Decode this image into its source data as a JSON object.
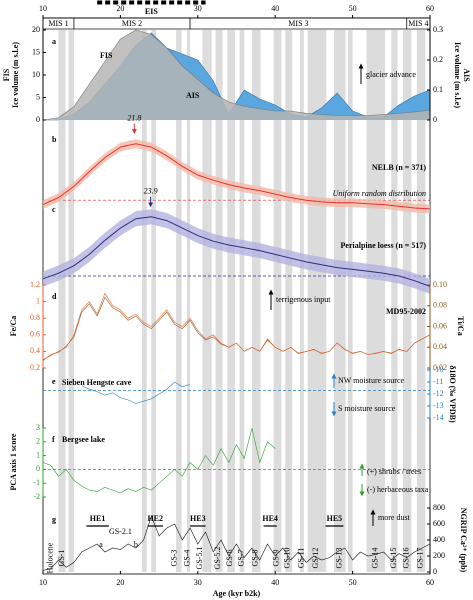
{
  "chart_data": [
    {
      "type": "area",
      "label": "a",
      "xlim": [
        10,
        60
      ],
      "xticks": [
        10,
        20,
        30,
        40,
        50,
        60
      ],
      "ylim": [
        0,
        20
      ],
      "yticks": [
        0,
        5,
        10,
        15,
        20
      ],
      "y2lim": [
        0,
        0.3
      ],
      "y2ticks": [
        0,
        0.1,
        0.2,
        0.3
      ],
      "ylabel": "Ice volume (m s.l.e)",
      "y2label": "Ice volume (m s.l.e)",
      "periods": [
        {
          "name": "MIS 1",
          "range": [
            10,
            14
          ]
        },
        {
          "name": "MIS 2",
          "range": [
            14,
            29
          ]
        },
        {
          "name": "MIS 3",
          "range": [
            29,
            57
          ]
        },
        {
          "name": "MIS 4",
          "range": [
            57,
            60
          ]
        }
      ],
      "eis": {
        "name": "EIS",
        "range": [
          17,
          31
        ]
      },
      "stadials": [
        [
          12.0,
          12.9
        ],
        [
          13.3,
          14.0
        ],
        [
          22.8,
          23.4
        ],
        [
          24.0,
          24.6
        ],
        [
          27.2,
          27.9
        ],
        [
          28.6,
          29.0
        ],
        [
          30.6,
          31.8
        ],
        [
          32.3,
          33.2
        ],
        [
          33.8,
          34.8
        ],
        [
          35.4,
          36.0
        ],
        [
          37.0,
          38.1
        ],
        [
          39.8,
          40.8
        ],
        [
          41.3,
          42.2
        ],
        [
          43.2,
          43.7
        ],
        [
          44.2,
          46.6
        ],
        [
          47.6,
          49.1
        ],
        [
          49.4,
          50.0
        ],
        [
          51.8,
          54.2
        ],
        [
          55.0,
          55.8
        ],
        [
          56.5,
          57.6
        ],
        [
          58.3,
          59.4
        ]
      ],
      "annotations": [
        "glacier advance"
      ],
      "x": [
        10,
        12,
        14,
        16,
        18,
        20,
        22,
        24,
        26,
        28,
        30,
        32,
        34,
        36,
        38,
        40,
        42,
        44,
        46,
        48,
        50,
        52,
        54,
        56,
        58,
        60
      ],
      "series": [
        {
          "name": "AIS",
          "color": "#5aa6de",
          "axis": "y2",
          "values": [
            0,
            0,
            0.02,
            0.06,
            0.12,
            0.18,
            0.25,
            0.29,
            0.24,
            0.22,
            0.2,
            0.13,
            0.02,
            0.1,
            0.07,
            0.05,
            0.02,
            0.01,
            0.04,
            0.09,
            0.03,
            0.01,
            0.01,
            0.05,
            0.08,
            0.1
          ]
        },
        {
          "name": "FIS",
          "color": "#b5b5b5",
          "values": [
            0,
            0.5,
            3,
            8,
            13,
            18,
            20,
            19,
            16,
            12,
            9,
            6,
            4,
            3,
            2.5,
            2,
            2,
            1.5,
            1.2,
            1,
            1,
            1,
            1.2,
            1.5,
            1.8,
            2.2
          ]
        }
      ]
    },
    {
      "type": "line",
      "label": "b",
      "xlim": [
        10,
        60
      ],
      "ylim": [
        0,
        1
      ],
      "peak": 21.8,
      "reference": {
        "name": "Uniform random distribution",
        "value": 0.17
      },
      "x": [
        10,
        12,
        14,
        16,
        18,
        20,
        22,
        24,
        26,
        28,
        30,
        32,
        34,
        36,
        38,
        40,
        42,
        44,
        46,
        48,
        50,
        52,
        54,
        56,
        58,
        60
      ],
      "series": [
        {
          "name": "NELB (n = 371)",
          "color": "#e8312e",
          "band": "#f4b8a8",
          "error": 0.05,
          "values": [
            0.12,
            0.2,
            0.33,
            0.5,
            0.66,
            0.78,
            0.82,
            0.78,
            0.68,
            0.56,
            0.46,
            0.4,
            0.35,
            0.31,
            0.28,
            0.24,
            0.2,
            0.17,
            0.15,
            0.14,
            0.14,
            0.13,
            0.12,
            0.1,
            0.08,
            0.07
          ]
        }
      ]
    },
    {
      "type": "line",
      "label": "c",
      "xlim": [
        10,
        60
      ],
      "ylim": [
        0,
        1
      ],
      "peak": 23.9,
      "reference": {
        "value": 0.17
      },
      "x": [
        10,
        12,
        14,
        16,
        18,
        20,
        22,
        24,
        26,
        28,
        30,
        32,
        34,
        36,
        38,
        40,
        42,
        44,
        46,
        48,
        50,
        52,
        54,
        56,
        58,
        60
      ],
      "series": [
        {
          "name": "Perialpine loess (n = 517)",
          "color": "#2e2e7a",
          "band": "#b3b1e0",
          "error": 0.08,
          "values": [
            0.14,
            0.2,
            0.28,
            0.4,
            0.55,
            0.68,
            0.78,
            0.8,
            0.76,
            0.68,
            0.6,
            0.54,
            0.5,
            0.47,
            0.44,
            0.4,
            0.36,
            0.32,
            0.29,
            0.26,
            0.24,
            0.22,
            0.2,
            0.17,
            0.12,
            0.06
          ]
        }
      ]
    },
    {
      "type": "line",
      "label": "d",
      "xlim": [
        10,
        60
      ],
      "colored_axes": true,
      "ylim": [
        0.2,
        1.2
      ],
      "yticks": [
        0.2,
        0.4,
        0.6,
        0.8,
        1.0,
        1.2
      ],
      "y2lim": [
        0.02,
        0.1
      ],
      "y2ticks": [
        0.02,
        0.04,
        0.06,
        0.08,
        {
          "value": 0.1,
          "label": "0.10"
        }
      ],
      "annotations": [
        "terrigenous input",
        "MD95-2002"
      ],
      "x": [
        10,
        11,
        12,
        13,
        14,
        15,
        16,
        17,
        18,
        19,
        20,
        21,
        22,
        23,
        24,
        25,
        26,
        27,
        28,
        29,
        30,
        31,
        32,
        33,
        34,
        35,
        36,
        37,
        38,
        39,
        40,
        41,
        42,
        43,
        44,
        45,
        46,
        47,
        48,
        49,
        50,
        51,
        52,
        53,
        54,
        55,
        56,
        57,
        58,
        59,
        60
      ],
      "series": [
        {
          "name": "Ti/Ca",
          "color": "#8a5a1a",
          "axis": "y2",
          "values": [
            0.027,
            0.033,
            0.035,
            0.041,
            0.05,
            0.074,
            0.082,
            0.07,
            0.088,
            0.078,
            0.074,
            0.066,
            0.07,
            0.062,
            0.058,
            0.066,
            0.074,
            0.062,
            0.058,
            0.066,
            0.054,
            0.047,
            0.05,
            0.043,
            0.04,
            0.044,
            0.036,
            0.04,
            0.036,
            0.047,
            0.04,
            0.036,
            0.04,
            0.034,
            0.036,
            0.038,
            0.034,
            0.036,
            0.044,
            0.038,
            0.034,
            0.036,
            0.033,
            0.034,
            0.036,
            0.034,
            0.038,
            0.036,
            0.044,
            0.048,
            0.052
          ]
        },
        {
          "name": "Fe/Ca",
          "color": "#e8602c",
          "values": [
            0.3,
            0.35,
            0.4,
            0.45,
            0.6,
            0.9,
            1.0,
            0.85,
            1.1,
            0.95,
            0.9,
            0.8,
            0.85,
            0.75,
            0.7,
            0.8,
            0.9,
            0.75,
            0.7,
            0.8,
            0.65,
            0.55,
            0.6,
            0.5,
            0.45,
            0.5,
            0.4,
            0.45,
            0.4,
            0.55,
            0.45,
            0.4,
            0.45,
            0.38,
            0.4,
            0.42,
            0.38,
            0.4,
            0.5,
            0.42,
            0.38,
            0.4,
            0.36,
            0.38,
            0.4,
            0.38,
            0.42,
            0.4,
            0.5,
            0.55,
            0.6
          ]
        }
      ]
    },
    {
      "type": "line",
      "label": "e",
      "xlim": [
        10,
        60
      ],
      "colored_axes": true,
      "y2lim": [
        -14,
        -10
      ],
      "y2ticks": [
        -10,
        -11,
        -12,
        -13,
        -14
      ],
      "y2label": "δ18O (‰ VPDB)",
      "reference": {
        "value": -11.7
      },
      "annotations": [
        "NW moisture source",
        "S moisture source"
      ],
      "x": [
        15,
        16,
        17,
        18,
        19,
        20,
        21,
        22,
        23,
        24,
        25,
        26,
        27,
        28,
        29
      ],
      "series": [
        {
          "name": "Sieben Hengste cave",
          "color": "#2a7fc0",
          "axis": "y2",
          "values": [
            -11.3,
            -11.6,
            -11.8,
            -12.1,
            -11.9,
            -12.3,
            -12.5,
            -12.8,
            -12.6,
            -12.4,
            -12.0,
            -11.6,
            -11.0,
            -11.4,
            -11.2
          ]
        }
      ]
    },
    {
      "type": "line",
      "label": "f",
      "xlim": [
        10,
        60
      ],
      "colored_axes": true,
      "ylim": [
        -2,
        3
      ],
      "yticks": [
        -2,
        -1,
        0,
        1,
        2,
        3
      ],
      "ylabel": "PCA axis 1 score",
      "reference": {
        "value": 0
      },
      "annotations": [
        "(+) shrubs / trees",
        "(-) herbaceous taxa"
      ],
      "x": [
        10,
        11,
        12,
        13,
        14,
        15,
        16,
        17,
        18,
        19,
        20,
        21,
        22,
        23,
        24,
        25,
        26,
        27,
        28,
        29,
        30,
        31,
        32,
        33,
        34,
        35,
        36,
        37,
        38,
        39,
        40
      ],
      "series": [
        {
          "name": "Bergsee lake",
          "color": "#2ca02c",
          "values": [
            0.5,
            0.3,
            -0.5,
            0,
            -0.8,
            -1.2,
            -1.5,
            -1.6,
            -1.3,
            -1.5,
            -1.7,
            -1.4,
            -1.6,
            -1.3,
            -1.5,
            -1.0,
            -0.5,
            0,
            -0.5,
            0.5,
            0,
            1,
            0.3,
            1.5,
            0.5,
            1.8,
            0.8,
            3,
            0.5,
            2,
            1.5
          ]
        }
      ]
    },
    {
      "type": "line",
      "label": "g",
      "xlim": [
        10,
        60
      ],
      "xticks": [
        10,
        20,
        30,
        40,
        50,
        60
      ],
      "xlabel": "Age (kyr b2k)",
      "y2lim": [
        0,
        800
      ],
      "y2ticks": [
        0,
        200,
        400,
        600,
        800
      ],
      "y2label": "NGRIP Ca²⁺ (ppb)",
      "annotations": [
        "more dust"
      ],
      "events": [
        {
          "name": "HE1",
          "range": [
            15.6,
            18.5
          ]
        },
        {
          "name": "HE2",
          "range": [
            23.5,
            25.5
          ]
        },
        {
          "name": "HE3",
          "range": [
            29,
            31
          ]
        },
        {
          "name": "HE4",
          "range": [
            38.5,
            40.2
          ]
        },
        {
          "name": "HE5",
          "range": [
            46.5,
            48.8
          ]
        }
      ],
      "labels": [
        {
          "text": "Holocene",
          "x": 11
        },
        {
          "text": "GS-1",
          "x": 12.5
        },
        {
          "text": "GS-3",
          "x": 27
        },
        {
          "text": "GS-4",
          "x": 28.7
        },
        {
          "text": "GS-5.1",
          "x": 30.3
        },
        {
          "text": "GS-5.2",
          "x": 32.6
        },
        {
          "text": "GS-6",
          "x": 34.2
        },
        {
          "text": "GS-7",
          "x": 35.7
        },
        {
          "text": "GS-8",
          "x": 37.5
        },
        {
          "text": "GS-9",
          "x": 40.2
        },
        {
          "text": "GS-10",
          "x": 41.6
        },
        {
          "text": "GS-11",
          "x": 43.4
        },
        {
          "text": "GS-12",
          "x": 45.3
        },
        {
          "text": "GS-13",
          "x": 48.3
        },
        {
          "text": "GS-14",
          "x": 53
        },
        {
          "text": "GS-15",
          "x": 55.4
        },
        {
          "text": "GS-16",
          "x": 57
        },
        {
          "text": "GS-17",
          "x": 58.8
        }
      ],
      "sublabels": [
        {
          "text": "GS-2.1",
          "x": 20
        },
        {
          "text": "a",
          "x": 17.5
        },
        {
          "text": "b",
          "x": 22
        }
      ],
      "x": [
        10,
        11,
        12,
        13,
        14,
        15,
        16,
        17,
        18,
        19,
        20,
        21,
        22,
        23,
        24,
        25,
        26,
        27,
        28,
        29,
        30,
        31,
        32,
        33,
        34,
        35,
        36,
        37,
        38,
        39,
        40,
        41,
        42,
        43,
        44,
        45,
        46,
        47,
        48,
        49,
        50,
        51,
        52,
        53,
        54,
        55,
        56,
        57,
        58,
        59,
        60
      ],
      "series": [
        {
          "color": "#111111",
          "axis": "y2",
          "values": [
            20,
            40,
            150,
            60,
            120,
            250,
            300,
            350,
            250,
            300,
            280,
            350,
            300,
            400,
            700,
            450,
            550,
            600,
            400,
            550,
            350,
            500,
            250,
            400,
            200,
            350,
            180,
            300,
            150,
            350,
            200,
            300,
            150,
            250,
            120,
            200,
            150,
            180,
            250,
            300,
            150,
            250,
            200,
            220,
            250,
            150,
            230,
            180,
            250,
            300,
            350
          ]
        }
      ]
    }
  ]
}
